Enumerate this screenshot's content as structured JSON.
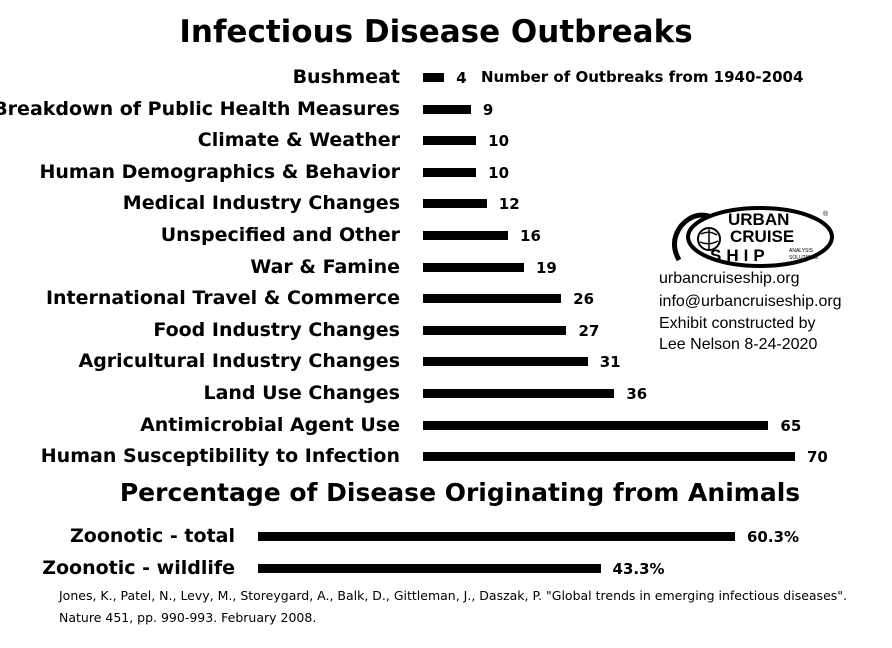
{
  "chart_data": [
    {
      "type": "bar",
      "orientation": "horizontal",
      "title": "Infectious Disease Outbreaks",
      "annotation": "Number of Outbreaks from 1940-2004",
      "categories": [
        "Bushmeat",
        "Breakdown of Public Health Measures",
        "Climate & Weather",
        "Human Demographics & Behavior",
        "Medical Industry Changes",
        "Unspecified and Other",
        "War & Famine",
        "International Travel & Commerce",
        "Food Industry Changes",
        "Agricultural Industry Changes",
        "Land Use Changes",
        "Antimicrobial Agent Use",
        "Human Susceptibility to Infection"
      ],
      "values": [
        4,
        9,
        10,
        10,
        12,
        16,
        19,
        26,
        27,
        31,
        36,
        65,
        70
      ],
      "xlim": [
        0,
        70
      ],
      "grid": false,
      "axes_visible": false
    },
    {
      "type": "bar",
      "orientation": "horizontal",
      "title": "Percentage of Disease Originating from Animals",
      "categories": [
        "Zoonotic - total",
        "Zoonotic - wildlife"
      ],
      "values": [
        60.3,
        43.3
      ],
      "value_labels": [
        "60.3%",
        "43.3%"
      ],
      "xlim": [
        0,
        60.3
      ],
      "grid": false,
      "axes_visible": false
    }
  ],
  "logo": {
    "line1": "URBAN",
    "line2": "CRUISE",
    "line3": "SHIP",
    "tag1": "ANALYSIS",
    "tag2": "SOLUTIONS",
    "registered": "®"
  },
  "contact": [
    "urbancruiseship.org",
    "info@urbancruiseship.org",
    "Exhibit constructed by",
    "Lee Nelson 8-24-2020"
  ],
  "citation": [
    "Jones, K., Patel, N., Levy, M., Storeygard, A., Balk, D., Gittleman, J., Daszak, P. \"Global trends in emerging infectious diseases\".",
    "Nature 451, pp. 990-993. February 2008."
  ]
}
